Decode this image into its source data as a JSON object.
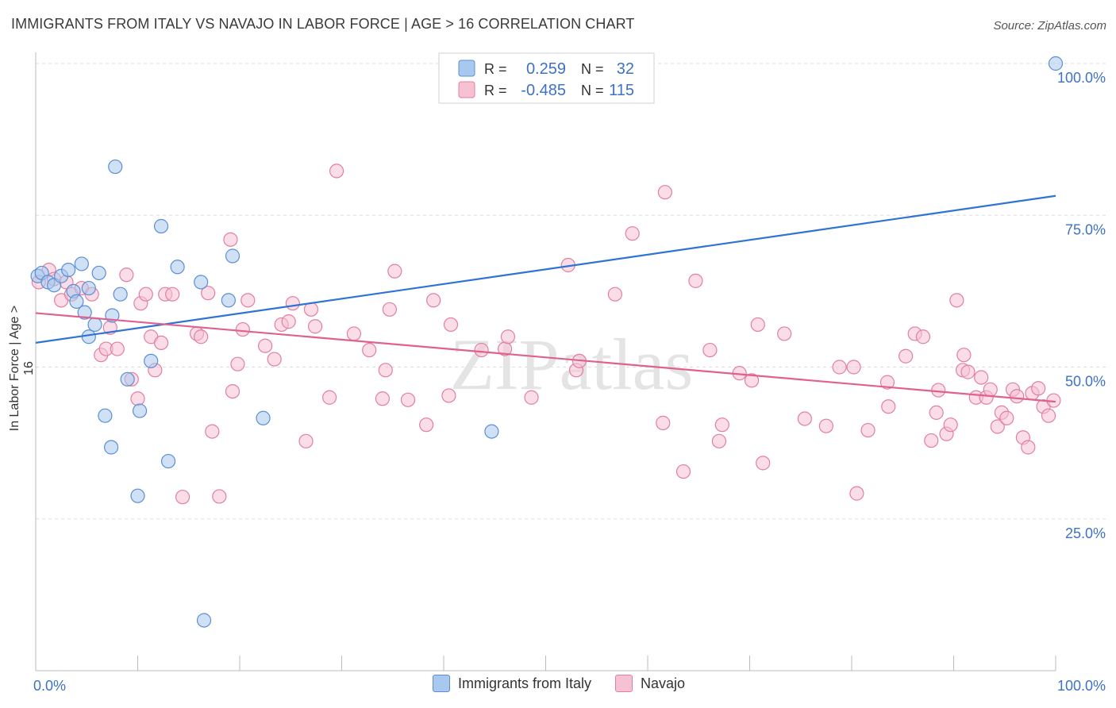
{
  "title": "IMMIGRANTS FROM ITALY VS NAVAJO IN LABOR FORCE | AGE > 16 CORRELATION CHART",
  "source": "Source: ZipAtlas.com",
  "watermark": "ZIPatlas",
  "colors": {
    "italy_fill": "#a9c8ee",
    "italy_stroke": "#5a8fd6",
    "italy_line": "#2f73d4",
    "navajo_fill": "#f6c1d2",
    "navajo_stroke": "#e27fa1",
    "navajo_line": "#e0608e",
    "axis_text": "#3d72c4",
    "grid": "#dddddd"
  },
  "legend_box": {
    "rows": [
      {
        "r_label": "R =",
        "r_value": "0.259",
        "n_label": "N =",
        "n_value": "32"
      },
      {
        "r_label": "R =",
        "r_value": "-0.485",
        "n_label": "N =",
        "n_value": "115"
      }
    ]
  },
  "bottom_legend": [
    "Immigrants from Italy",
    "Navajo"
  ],
  "chart_data": {
    "type": "scatter",
    "xlabel": "",
    "ylabel": "In Labor Force | Age > 16",
    "xlim": [
      0,
      100
    ],
    "ylim": [
      0,
      100
    ],
    "x_tick_labels": [
      {
        "value": 0,
        "label": "0.0%"
      },
      {
        "value": 100,
        "label": "100.0%"
      }
    ],
    "y_tick_labels": [
      {
        "value": 25,
        "label": "25.0%"
      },
      {
        "value": 50,
        "label": "50.0%"
      },
      {
        "value": 75,
        "label": "75.0%"
      },
      {
        "value": 100,
        "label": "100.0%"
      }
    ],
    "grid": true,
    "series": [
      {
        "name": "Immigrants from Italy",
        "trend": {
          "x": [
            0,
            100
          ],
          "y": [
            54.0,
            78.2
          ]
        },
        "points": [
          {
            "x": 0.2,
            "y": 65.0
          },
          {
            "x": 0.6,
            "y": 65.5
          },
          {
            "x": 1.2,
            "y": 64.0
          },
          {
            "x": 1.8,
            "y": 63.5
          },
          {
            "x": 2.5,
            "y": 65.0
          },
          {
            "x": 3.2,
            "y": 66.0
          },
          {
            "x": 4.5,
            "y": 67.0
          },
          {
            "x": 3.7,
            "y": 62.5
          },
          {
            "x": 4.0,
            "y": 60.8
          },
          {
            "x": 5.2,
            "y": 63.0
          },
          {
            "x": 6.2,
            "y": 65.5
          },
          {
            "x": 4.8,
            "y": 59.0
          },
          {
            "x": 5.8,
            "y": 57.0
          },
          {
            "x": 5.2,
            "y": 55.0
          },
          {
            "x": 7.5,
            "y": 58.5
          },
          {
            "x": 8.3,
            "y": 62.0
          },
          {
            "x": 7.8,
            "y": 83.0
          },
          {
            "x": 12.3,
            "y": 73.2
          },
          {
            "x": 13.9,
            "y": 66.5
          },
          {
            "x": 16.2,
            "y": 64.0
          },
          {
            "x": 19.3,
            "y": 68.3
          },
          {
            "x": 18.9,
            "y": 61.0
          },
          {
            "x": 11.3,
            "y": 51.0
          },
          {
            "x": 9.0,
            "y": 48.0
          },
          {
            "x": 10.2,
            "y": 42.8
          },
          {
            "x": 6.8,
            "y": 42.0
          },
          {
            "x": 7.4,
            "y": 36.8
          },
          {
            "x": 13.0,
            "y": 34.5
          },
          {
            "x": 10.0,
            "y": 28.8
          },
          {
            "x": 22.3,
            "y": 41.6
          },
          {
            "x": 16.5,
            "y": 8.3
          },
          {
            "x": 44.7,
            "y": 39.4
          },
          {
            "x": 100.0,
            "y": 100.0
          }
        ]
      },
      {
        "name": "Navajo",
        "trend": {
          "x": [
            0,
            100
          ],
          "y": [
            58.9,
            44.3
          ]
        },
        "points": [
          {
            "x": 0.3,
            "y": 64.0
          },
          {
            "x": 1.3,
            "y": 66.0
          },
          {
            "x": 1.8,
            "y": 64.5
          },
          {
            "x": 2.5,
            "y": 61.0
          },
          {
            "x": 3.0,
            "y": 64.0
          },
          {
            "x": 3.5,
            "y": 62.0
          },
          {
            "x": 4.5,
            "y": 63.0
          },
          {
            "x": 5.5,
            "y": 62.0
          },
          {
            "x": 6.4,
            "y": 52.0
          },
          {
            "x": 6.9,
            "y": 53.0
          },
          {
            "x": 7.3,
            "y": 56.5
          },
          {
            "x": 8.0,
            "y": 53.0
          },
          {
            "x": 8.9,
            "y": 65.2
          },
          {
            "x": 9.4,
            "y": 48.0
          },
          {
            "x": 10.0,
            "y": 44.8
          },
          {
            "x": 10.3,
            "y": 60.5
          },
          {
            "x": 10.8,
            "y": 62.0
          },
          {
            "x": 11.3,
            "y": 55.0
          },
          {
            "x": 11.7,
            "y": 49.5
          },
          {
            "x": 12.3,
            "y": 54.0
          },
          {
            "x": 12.7,
            "y": 62.0
          },
          {
            "x": 13.4,
            "y": 62.0
          },
          {
            "x": 14.4,
            "y": 28.6
          },
          {
            "x": 15.8,
            "y": 55.5
          },
          {
            "x": 16.2,
            "y": 55.0
          },
          {
            "x": 16.9,
            "y": 62.2
          },
          {
            "x": 17.3,
            "y": 39.4
          },
          {
            "x": 18.0,
            "y": 28.7
          },
          {
            "x": 19.1,
            "y": 71.0
          },
          {
            "x": 19.3,
            "y": 46.0
          },
          {
            "x": 19.8,
            "y": 50.5
          },
          {
            "x": 20.3,
            "y": 56.2
          },
          {
            "x": 20.8,
            "y": 61.0
          },
          {
            "x": 22.5,
            "y": 53.5
          },
          {
            "x": 23.4,
            "y": 51.3
          },
          {
            "x": 24.1,
            "y": 57.0
          },
          {
            "x": 24.8,
            "y": 57.5
          },
          {
            "x": 25.2,
            "y": 60.5
          },
          {
            "x": 26.5,
            "y": 37.8
          },
          {
            "x": 27.0,
            "y": 59.5
          },
          {
            "x": 27.4,
            "y": 56.7
          },
          {
            "x": 28.8,
            "y": 45.0
          },
          {
            "x": 29.5,
            "y": 82.3
          },
          {
            "x": 31.2,
            "y": 55.5
          },
          {
            "x": 32.7,
            "y": 52.8
          },
          {
            "x": 34.0,
            "y": 44.8
          },
          {
            "x": 34.3,
            "y": 49.5
          },
          {
            "x": 34.7,
            "y": 59.5
          },
          {
            "x": 35.2,
            "y": 65.8
          },
          {
            "x": 36.5,
            "y": 44.6
          },
          {
            "x": 38.3,
            "y": 40.5
          },
          {
            "x": 39.0,
            "y": 61.0
          },
          {
            "x": 40.5,
            "y": 45.3
          },
          {
            "x": 40.7,
            "y": 57.0
          },
          {
            "x": 43.7,
            "y": 52.8
          },
          {
            "x": 46.0,
            "y": 53.0
          },
          {
            "x": 46.3,
            "y": 55.0
          },
          {
            "x": 48.6,
            "y": 45.0
          },
          {
            "x": 52.2,
            "y": 66.8
          },
          {
            "x": 53.0,
            "y": 49.5
          },
          {
            "x": 53.3,
            "y": 51.0
          },
          {
            "x": 56.8,
            "y": 62.0
          },
          {
            "x": 58.5,
            "y": 72.0
          },
          {
            "x": 61.5,
            "y": 40.8
          },
          {
            "x": 61.7,
            "y": 78.8
          },
          {
            "x": 63.5,
            "y": 32.8
          },
          {
            "x": 64.7,
            "y": 64.2
          },
          {
            "x": 66.1,
            "y": 52.8
          },
          {
            "x": 67.0,
            "y": 37.8
          },
          {
            "x": 67.3,
            "y": 40.5
          },
          {
            "x": 69.0,
            "y": 49.0
          },
          {
            "x": 70.2,
            "y": 47.8
          },
          {
            "x": 70.8,
            "y": 57.0
          },
          {
            "x": 71.3,
            "y": 34.2
          },
          {
            "x": 73.4,
            "y": 55.5
          },
          {
            "x": 75.4,
            "y": 41.5
          },
          {
            "x": 77.5,
            "y": 40.3
          },
          {
            "x": 78.8,
            "y": 50.0
          },
          {
            "x": 80.2,
            "y": 50.0
          },
          {
            "x": 80.5,
            "y": 29.2
          },
          {
            "x": 81.6,
            "y": 39.6
          },
          {
            "x": 83.5,
            "y": 47.5
          },
          {
            "x": 83.6,
            "y": 43.5
          },
          {
            "x": 85.3,
            "y": 51.8
          },
          {
            "x": 86.2,
            "y": 55.5
          },
          {
            "x": 87.0,
            "y": 55.0
          },
          {
            "x": 87.8,
            "y": 37.9
          },
          {
            "x": 88.3,
            "y": 42.5
          },
          {
            "x": 88.5,
            "y": 46.2
          },
          {
            "x": 89.3,
            "y": 39.0
          },
          {
            "x": 89.7,
            "y": 40.5
          },
          {
            "x": 90.3,
            "y": 61.0
          },
          {
            "x": 90.9,
            "y": 49.5
          },
          {
            "x": 91.0,
            "y": 52.0
          },
          {
            "x": 91.4,
            "y": 49.2
          },
          {
            "x": 92.2,
            "y": 45.0
          },
          {
            "x": 92.7,
            "y": 48.3
          },
          {
            "x": 93.2,
            "y": 45.0
          },
          {
            "x": 93.6,
            "y": 46.3
          },
          {
            "x": 94.3,
            "y": 40.2
          },
          {
            "x": 94.7,
            "y": 42.5
          },
          {
            "x": 95.2,
            "y": 41.6
          },
          {
            "x": 95.8,
            "y": 46.3
          },
          {
            "x": 96.2,
            "y": 45.2
          },
          {
            "x": 96.8,
            "y": 38.4
          },
          {
            "x": 97.3,
            "y": 36.8
          },
          {
            "x": 97.7,
            "y": 45.7
          },
          {
            "x": 98.3,
            "y": 46.5
          },
          {
            "x": 98.8,
            "y": 43.5
          },
          {
            "x": 99.3,
            "y": 42.0
          },
          {
            "x": 99.8,
            "y": 44.5
          }
        ]
      }
    ]
  }
}
